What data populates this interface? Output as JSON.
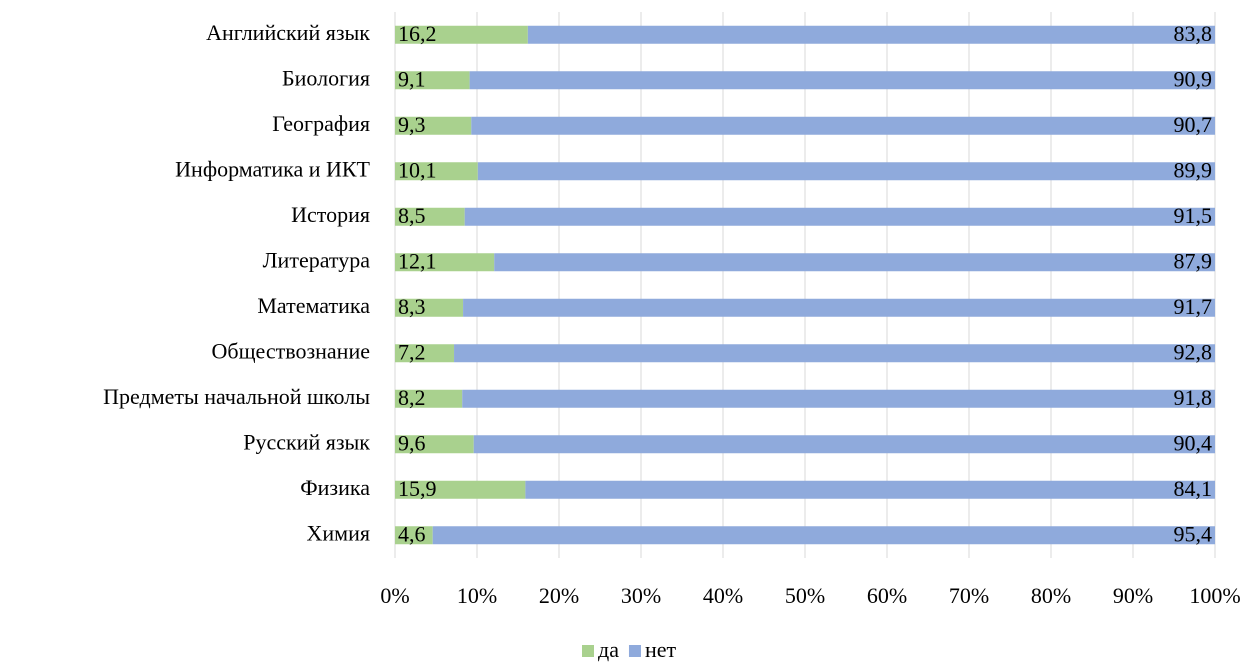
{
  "chart_data": {
    "type": "stacked_barh",
    "categories": [
      "Английский язык",
      "Биология",
      "География",
      "Информатика и ИКТ",
      "История",
      "Литература",
      "Математика",
      "Обществознание",
      "Предметы начальной школы",
      "Русский язык",
      "Физика",
      "Химия"
    ],
    "series": [
      {
        "name": "да",
        "color": "#a9d18e",
        "values": [
          16.2,
          9.1,
          9.3,
          10.1,
          8.5,
          12.1,
          8.3,
          7.2,
          8.2,
          9.6,
          15.9,
          4.6
        ],
        "value_labels": [
          "16,2",
          "9,1",
          "9,3",
          "10,1",
          "8,5",
          "12,1",
          "8,3",
          "7,2",
          "8,2",
          "9,6",
          "15,9",
          "4,6"
        ]
      },
      {
        "name": "нет",
        "color": "#8faadc",
        "values": [
          83.8,
          90.9,
          90.7,
          89.9,
          91.5,
          87.9,
          91.7,
          92.8,
          91.8,
          90.4,
          84.1,
          95.4
        ],
        "value_labels": [
          "83,8",
          "90,9",
          "90,7",
          "89,9",
          "91,5",
          "87,9",
          "91,7",
          "92,8",
          "91,8",
          "90,4",
          "84,1",
          "95,4"
        ]
      }
    ],
    "xlim": [
      0,
      100
    ],
    "xticks": [
      {
        "value": 0,
        "label": "0%"
      },
      {
        "value": 10,
        "label": "10%"
      },
      {
        "value": 20,
        "label": "20%"
      },
      {
        "value": 30,
        "label": "30%"
      },
      {
        "value": 40,
        "label": "40%"
      },
      {
        "value": 50,
        "label": "50%"
      },
      {
        "value": 60,
        "label": "60%"
      },
      {
        "value": 70,
        "label": "70%"
      },
      {
        "value": 80,
        "label": "80%"
      },
      {
        "value": 90,
        "label": "90%"
      },
      {
        "value": 100,
        "label": "100%"
      }
    ],
    "grid": true,
    "legend": "bottom"
  }
}
